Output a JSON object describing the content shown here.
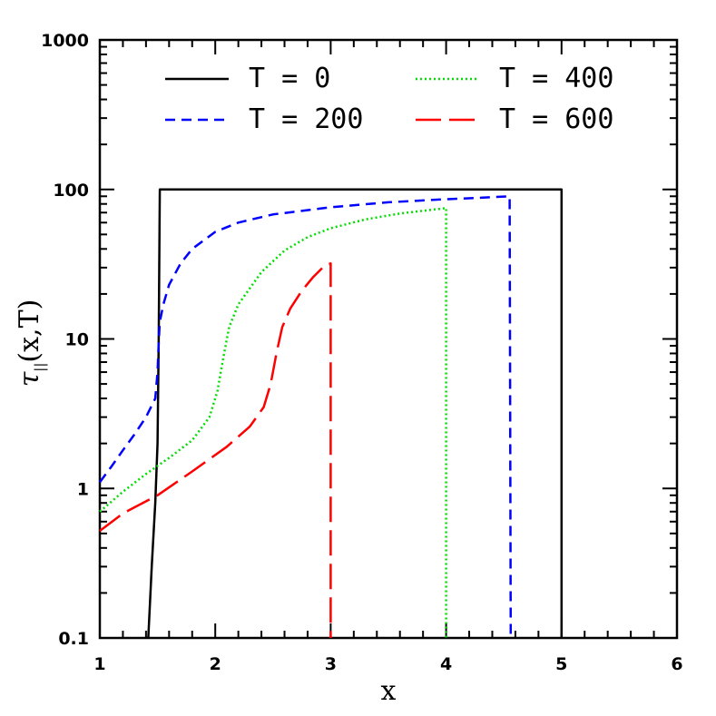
{
  "chart_data": {
    "type": "line",
    "xlabel": "x",
    "ylabel_tau": "τ",
    "ylabel_sub": "||",
    "ylabel_rest": "(x,T)",
    "x_scale": "linear",
    "y_scale": "log",
    "xlim": [
      1,
      6
    ],
    "ylim": [
      0.1,
      1000
    ],
    "x_ticks": [
      "1",
      "2",
      "3",
      "4",
      "5",
      "6"
    ],
    "y_ticks": [
      "0.1",
      "1",
      "10",
      "100",
      "1000"
    ],
    "grid": false,
    "legend_placement": "top",
    "series": [
      {
        "name": "T = 0",
        "color": "#000000",
        "dash": "solid",
        "points": [
          [
            1.42,
            0.1
          ],
          [
            1.45,
            0.3
          ],
          [
            1.48,
            0.8
          ],
          [
            1.5,
            2.0
          ],
          [
            1.51,
            10
          ],
          [
            1.52,
            100
          ],
          [
            5.0,
            100
          ],
          [
            5.0,
            0.1
          ]
        ]
      },
      {
        "name": "T = 200",
        "color": "#0000ff",
        "dash": "dashed",
        "points": [
          [
            1.0,
            1.1
          ],
          [
            1.1,
            1.4
          ],
          [
            1.2,
            1.8
          ],
          [
            1.3,
            2.3
          ],
          [
            1.4,
            3.0
          ],
          [
            1.48,
            4.0
          ],
          [
            1.5,
            6.0
          ],
          [
            1.51,
            9.5
          ],
          [
            1.52,
            13
          ],
          [
            1.55,
            17
          ],
          [
            1.6,
            23
          ],
          [
            1.7,
            32
          ],
          [
            1.8,
            40
          ],
          [
            2.0,
            52
          ],
          [
            2.2,
            60
          ],
          [
            2.5,
            68
          ],
          [
            3.0,
            76
          ],
          [
            3.5,
            82
          ],
          [
            4.0,
            86
          ],
          [
            4.3,
            88
          ],
          [
            4.55,
            90
          ],
          [
            4.56,
            0.1
          ]
        ]
      },
      {
        "name": "T = 400",
        "color": "#00dd00",
        "dash": "dotted",
        "points": [
          [
            1.0,
            0.7
          ],
          [
            1.2,
            0.95
          ],
          [
            1.4,
            1.25
          ],
          [
            1.6,
            1.6
          ],
          [
            1.8,
            2.1
          ],
          [
            1.95,
            3.0
          ],
          [
            2.02,
            4.5
          ],
          [
            2.07,
            7.5
          ],
          [
            2.12,
            12
          ],
          [
            2.2,
            17
          ],
          [
            2.4,
            28
          ],
          [
            2.6,
            39
          ],
          [
            2.8,
            48
          ],
          [
            3.0,
            55
          ],
          [
            3.3,
            63
          ],
          [
            3.6,
            69
          ],
          [
            4.0,
            75
          ],
          [
            4.0,
            0.1
          ]
        ]
      },
      {
        "name": "T = 600",
        "color": "#ff0000",
        "dash": "longdash",
        "points": [
          [
            1.0,
            0.52
          ],
          [
            1.2,
            0.68
          ],
          [
            1.5,
            0.9
          ],
          [
            1.8,
            1.3
          ],
          [
            2.1,
            1.9
          ],
          [
            2.3,
            2.6
          ],
          [
            2.42,
            3.5
          ],
          [
            2.48,
            5.0
          ],
          [
            2.53,
            8.0
          ],
          [
            2.58,
            12
          ],
          [
            2.65,
            16
          ],
          [
            2.75,
            21
          ],
          [
            2.85,
            26
          ],
          [
            2.95,
            31
          ],
          [
            3.0,
            32
          ],
          [
            3.0,
            0.1
          ]
        ]
      }
    ]
  }
}
